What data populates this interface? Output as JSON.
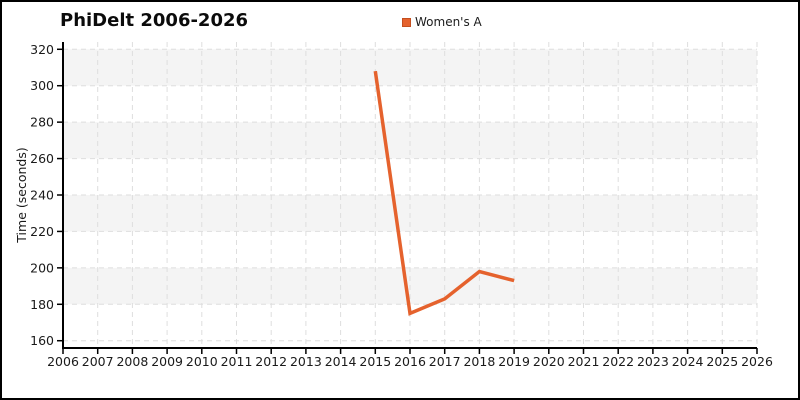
{
  "window": {
    "background": "#ffffff",
    "border_color": "#000000"
  },
  "header": {
    "title": "PhiDelt 2006-2026"
  },
  "legend": {
    "position": "top-center",
    "items": [
      {
        "label": "Women's A",
        "swatch_color": "#e5622d",
        "swatch_border": "#c44f1f"
      }
    ]
  },
  "colors": {
    "series_orange": "#e5622d",
    "band_gray": "#f4f4f4",
    "gridline_gray": "#dedede",
    "axis_black": "#000000",
    "tick_label": "#1a1a1a"
  },
  "chart_data": {
    "type": "line",
    "title": "PhiDelt 2006-2026",
    "xlabel": "",
    "ylabel": "Time (seconds)",
    "legend_position": "top-center",
    "grid": "dashed horizontal and vertical gridlines, alternating gray/white horizontal bands",
    "x_ticks": [
      2006,
      2007,
      2008,
      2009,
      2010,
      2011,
      2012,
      2013,
      2014,
      2015,
      2016,
      2017,
      2018,
      2019,
      2020,
      2021,
      2022,
      2023,
      2024,
      2025,
      2026
    ],
    "y_ticks": [
      160,
      180,
      200,
      220,
      240,
      260,
      280,
      300,
      320
    ],
    "xlim": [
      2006,
      2026
    ],
    "ylim": [
      156,
      324
    ],
    "band_ranges": [
      [
        180,
        200
      ],
      [
        220,
        240
      ],
      [
        260,
        280
      ],
      [
        300,
        320
      ]
    ],
    "series": [
      {
        "name": "Women's A",
        "color": "#e5622d",
        "x": [
          2015,
          2016,
          2017,
          2018,
          2019
        ],
        "y": [
          308,
          175,
          183,
          198,
          193
        ]
      }
    ]
  }
}
